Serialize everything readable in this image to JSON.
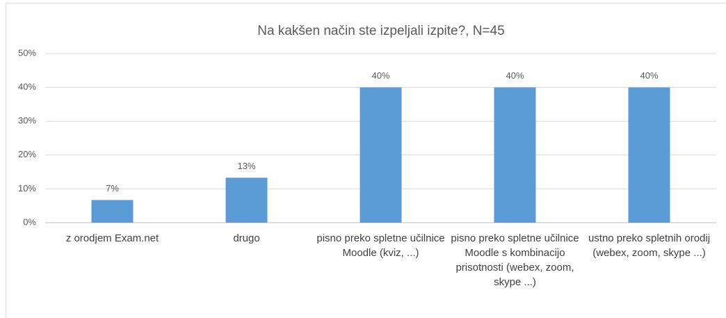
{
  "chart_data": {
    "type": "bar",
    "title": "Na kakšen način ste izpeljali izpite?, N=45",
    "categories": [
      "z orodjem Exam.net",
      "drugo",
      "pisno preko spletne učilnice Moodle (kviz, ...)",
      "pisno preko spletne učilnice Moodle s kombinacijo prisotnosti (webex, zoom, skype ...)",
      "ustno preko spletnih orodij (webex, zoom, skype ...)"
    ],
    "values": [
      6.7,
      13.3,
      40,
      40,
      40
    ],
    "value_labels": [
      "7%",
      "13%",
      "40%",
      "40%",
      "40%"
    ],
    "color": "#5b9bd5",
    "ylim": [
      0,
      50
    ],
    "yticks": [
      {
        "value": 0,
        "label": "0%"
      },
      {
        "value": 10,
        "label": "10%"
      },
      {
        "value": 20,
        "label": "20%"
      },
      {
        "value": 30,
        "label": "30%"
      },
      {
        "value": 40,
        "label": "40%"
      },
      {
        "value": 50,
        "label": "50%"
      }
    ],
    "grid": true
  }
}
